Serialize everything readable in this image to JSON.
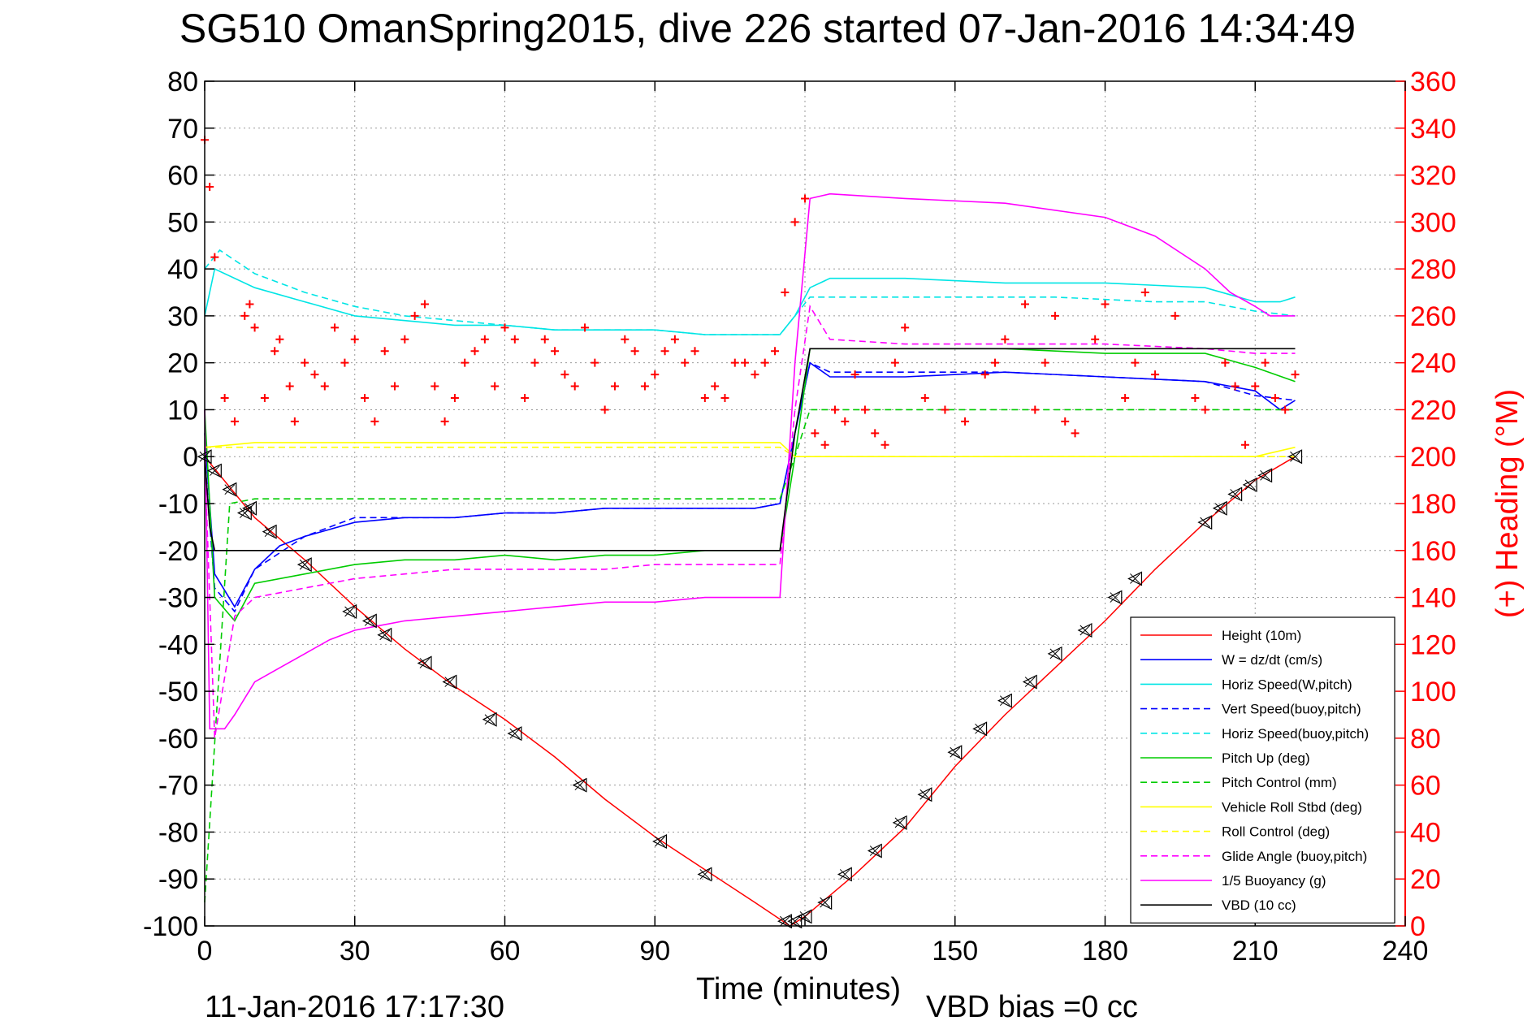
{
  "title": "SG510 OmanSpring2015, dive 226 started 07-Jan-2016 14:34:49",
  "footer": {
    "timestamp": "11-Jan-2016 17:17:30",
    "vbd_bias": "VBD bias =0 cc"
  },
  "colors": {
    "height": "#ff0000",
    "w": "#0000ff",
    "horiz": "#00e5e5",
    "pitch": "#00cc00",
    "roll": "#ffff00",
    "glide": "#ff00ff",
    "buoy": "#ff00ff",
    "vbd": "#000000",
    "heading": "#ff0000"
  },
  "chart_data": {
    "type": "line",
    "title": "SG510 OmanSpring2015, dive 226 started 07-Jan-2016 14:34:49",
    "xlabel": "Time (minutes)",
    "ylabel": "",
    "y2label": "(+) Heading (°M)",
    "xlim": [
      0,
      240
    ],
    "ylim": [
      -100,
      80
    ],
    "y2lim": [
      0,
      360
    ],
    "xticks": [
      "0",
      "30",
      "60",
      "90",
      "120",
      "150",
      "180",
      "210",
      "240"
    ],
    "yticks": [
      "80",
      "70",
      "60",
      "50",
      "40",
      "30",
      "20",
      "10",
      "0",
      "-10",
      "-20",
      "-30",
      "-40",
      "-50",
      "-60",
      "-70",
      "-80",
      "-90",
      "-100"
    ],
    "y2ticks": [
      "360",
      "340",
      "320",
      "300",
      "280",
      "260",
      "240",
      "220",
      "200",
      "180",
      "160",
      "140",
      "120",
      "100",
      "80",
      "60",
      "40",
      "20",
      "0"
    ],
    "grid": true,
    "legend_position": "bottom-right",
    "series": [
      {
        "name": "Height (10m)",
        "style": "solid",
        "color": "#ff0000",
        "x": [
          0,
          10,
          20,
          30,
          40,
          50,
          60,
          70,
          80,
          90,
          100,
          110,
          117,
          120,
          130,
          140,
          150,
          160,
          170,
          180,
          190,
          200,
          210,
          218
        ],
        "y": [
          0,
          -13,
          -22,
          -32,
          -41,
          -49,
          -56,
          -64,
          -73,
          -81,
          -88,
          -95,
          -100,
          -98,
          -89,
          -79,
          -66,
          -55,
          -45,
          -35,
          -24,
          -14,
          -5,
          0
        ]
      },
      {
        "name": "W = dz/dt (cm/s)",
        "style": "solid",
        "color": "#0000ff",
        "x": [
          0,
          2,
          6,
          10,
          15,
          20,
          30,
          40,
          50,
          60,
          70,
          80,
          90,
          100,
          110,
          115,
          118,
          121,
          125,
          140,
          160,
          180,
          200,
          210,
          215,
          218
        ],
        "y": [
          5,
          -25,
          -32,
          -24,
          -19,
          -17,
          -14,
          -13,
          -13,
          -12,
          -12,
          -11,
          -11,
          -11,
          -11,
          -10,
          5,
          20,
          17,
          17,
          18,
          17,
          16,
          14,
          10,
          12
        ]
      },
      {
        "name": "Horiz Speed(W,pitch)",
        "style": "solid",
        "color": "#00e5e5",
        "x": [
          0,
          2,
          10,
          20,
          30,
          40,
          50,
          60,
          70,
          80,
          90,
          100,
          110,
          115,
          118,
          121,
          125,
          140,
          160,
          180,
          200,
          210,
          215,
          218
        ],
        "y": [
          30,
          40,
          36,
          33,
          30,
          29,
          28,
          28,
          27,
          27,
          27,
          26,
          26,
          26,
          30,
          36,
          38,
          38,
          37,
          37,
          36,
          33,
          33,
          34
        ]
      },
      {
        "name": "Vert Speed(buoy,pitch)",
        "style": "dashed",
        "color": "#0000ff",
        "x": [
          0,
          2,
          6,
          10,
          20,
          30,
          40,
          50,
          60,
          70,
          80,
          90,
          100,
          110,
          115,
          118,
          121,
          125,
          140,
          160,
          180,
          200,
          210,
          218
        ],
        "y": [
          0,
          -28,
          -33,
          -24,
          -17,
          -13,
          -13,
          -13,
          -12,
          -12,
          -11,
          -11,
          -11,
          -11,
          -10,
          5,
          20,
          18,
          18,
          18,
          17,
          16,
          13,
          12
        ]
      },
      {
        "name": "Horiz Speed(buoy,pitch)",
        "style": "dashed",
        "color": "#00e5e5",
        "x": [
          0,
          3,
          10,
          20,
          30,
          40,
          50,
          60,
          70,
          80,
          90,
          100,
          110,
          115,
          118,
          121,
          130,
          150,
          170,
          190,
          200,
          210,
          218
        ],
        "y": [
          40,
          44,
          39,
          35,
          32,
          30,
          29,
          28,
          27,
          27,
          27,
          26,
          26,
          26,
          30,
          34,
          34,
          34,
          34,
          33,
          33,
          31,
          30
        ]
      },
      {
        "name": "Pitch Up (deg)",
        "style": "solid",
        "color": "#00cc00",
        "x": [
          0,
          2,
          6,
          10,
          20,
          30,
          40,
          50,
          60,
          70,
          80,
          90,
          100,
          110,
          115,
          118,
          121,
          125,
          140,
          160,
          180,
          200,
          210,
          218
        ],
        "y": [
          10,
          -30,
          -35,
          -27,
          -25,
          -23,
          -22,
          -22,
          -21,
          -22,
          -21,
          -21,
          -20,
          -20,
          -20,
          0,
          23,
          23,
          23,
          23,
          22,
          22,
          19,
          16
        ]
      },
      {
        "name": "Pitch Control (mm)",
        "style": "dashed",
        "color": "#00cc00",
        "x": [
          0,
          5,
          10,
          115,
          118,
          121,
          218
        ],
        "y": [
          -95,
          -10,
          -9,
          -9,
          0,
          10,
          10
        ]
      },
      {
        "name": "Vehicle Roll Stbd (deg)",
        "style": "solid",
        "color": "#ffff00",
        "x": [
          0,
          10,
          20,
          40,
          60,
          80,
          100,
          115,
          118,
          121,
          130,
          150,
          170,
          190,
          200,
          210,
          218
        ],
        "y": [
          2,
          3,
          3,
          3,
          3,
          3,
          3,
          3,
          0,
          0,
          0,
          0,
          0,
          0,
          0,
          0,
          2
        ]
      },
      {
        "name": "Roll Control (deg)",
        "style": "dashed",
        "color": "#ffff00",
        "x": [
          0,
          10,
          20,
          40,
          60,
          80,
          100,
          115,
          118,
          121,
          140,
          160,
          180,
          200,
          218
        ],
        "y": [
          2,
          2,
          2,
          2,
          2,
          2,
          2,
          2,
          0,
          0,
          0,
          0,
          0,
          0,
          0
        ]
      },
      {
        "name": "Glide Angle (buoy,pitch)",
        "style": "dashed",
        "color": "#ff00ff",
        "x": [
          0,
          2,
          6,
          10,
          20,
          30,
          40,
          50,
          60,
          70,
          80,
          90,
          100,
          110,
          115,
          118,
          121,
          125,
          140,
          160,
          180,
          200,
          210,
          218
        ],
        "y": [
          0,
          -60,
          -34,
          -30,
          -28,
          -26,
          -25,
          -24,
          -24,
          -24,
          -24,
          -23,
          -23,
          -23,
          -23,
          10,
          32,
          25,
          24,
          24,
          24,
          23,
          22,
          22
        ]
      },
      {
        "name": "1/5 Buoyancy (g)",
        "style": "solid",
        "color": "#ff00ff",
        "x": [
          0,
          1,
          4,
          6,
          10,
          15,
          20,
          25,
          30,
          35,
          40,
          50,
          60,
          70,
          80,
          90,
          100,
          110,
          115,
          118,
          121,
          125,
          140,
          160,
          180,
          190,
          200,
          205,
          210,
          213,
          218
        ],
        "y": [
          10,
          -58,
          -58,
          -55,
          -48,
          -45,
          -42,
          -39,
          -37,
          -36,
          -35,
          -34,
          -33,
          -32,
          -31,
          -31,
          -30,
          -30,
          -30,
          20,
          55,
          56,
          55,
          54,
          51,
          47,
          40,
          35,
          32,
          30,
          30
        ]
      },
      {
        "name": "VBD (10 cc)",
        "style": "solid",
        "color": "#000000",
        "x": [
          0,
          1,
          2,
          115,
          118,
          121,
          218
        ],
        "y": [
          0,
          -15,
          -20,
          -20,
          5,
          23,
          23
        ]
      }
    ],
    "heading_series": {
      "name": "Heading (°M)",
      "axis": "right",
      "marker": "+",
      "color": "#ff0000",
      "x": [
        0,
        1,
        2,
        4,
        6,
        8,
        9,
        10,
        12,
        14,
        15,
        17,
        18,
        20,
        22,
        24,
        26,
        28,
        30,
        32,
        34,
        36,
        38,
        40,
        42,
        44,
        46,
        48,
        50,
        52,
        54,
        56,
        58,
        60,
        62,
        64,
        66,
        68,
        70,
        72,
        74,
        76,
        78,
        80,
        82,
        84,
        86,
        88,
        90,
        92,
        94,
        96,
        98,
        100,
        102,
        104,
        106,
        108,
        110,
        112,
        114,
        116,
        118,
        120,
        122,
        124,
        126,
        128,
        130,
        132,
        134,
        136,
        138,
        140,
        144,
        148,
        152,
        156,
        158,
        160,
        164,
        166,
        168,
        170,
        172,
        174,
        178,
        180,
        184,
        186,
        188,
        190,
        194,
        198,
        200,
        204,
        206,
        208,
        210,
        212,
        214,
        216,
        218
      ],
      "y": [
        335,
        315,
        285,
        225,
        215,
        260,
        265,
        255,
        225,
        245,
        250,
        230,
        215,
        240,
        235,
        230,
        255,
        240,
        250,
        225,
        215,
        245,
        230,
        250,
        260,
        265,
        230,
        215,
        225,
        240,
        245,
        250,
        230,
        255,
        250,
        225,
        240,
        250,
        245,
        235,
        230,
        255,
        240,
        220,
        230,
        250,
        245,
        230,
        235,
        245,
        250,
        240,
        245,
        225,
        230,
        225,
        240,
        240,
        235,
        240,
        245,
        270,
        300,
        310,
        210,
        205,
        220,
        215,
        235,
        220,
        210,
        205,
        240,
        255,
        225,
        220,
        215,
        235,
        240,
        250,
        265,
        220,
        240,
        260,
        215,
        210,
        250,
        265,
        225,
        240,
        270,
        235,
        260,
        225,
        220,
        240,
        230,
        205,
        230,
        240,
        225,
        220,
        235
      ]
    },
    "triangle_markers": {
      "color": "#000000",
      "x": [
        0,
        2,
        5,
        8,
        9,
        13,
        20,
        29,
        33,
        36,
        44,
        49,
        57,
        62,
        75,
        91,
        100,
        116,
        118,
        120,
        124,
        128,
        134,
        139,
        144,
        150,
        155,
        160,
        165,
        170,
        176,
        182,
        186,
        200,
        203,
        206,
        209,
        212,
        218
      ],
      "y": [
        0,
        -3,
        -7,
        -12,
        -11,
        -16,
        -23,
        -33,
        -35,
        -38,
        -44,
        -48,
        -56,
        -59,
        -70,
        -82,
        -89,
        -99,
        -99,
        -98,
        -95,
        -89,
        -84,
        -78,
        -72,
        -63,
        -58,
        -52,
        -48,
        -42,
        -37,
        -30,
        -26,
        -14,
        -11,
        -8,
        -6,
        -4,
        0
      ]
    }
  }
}
